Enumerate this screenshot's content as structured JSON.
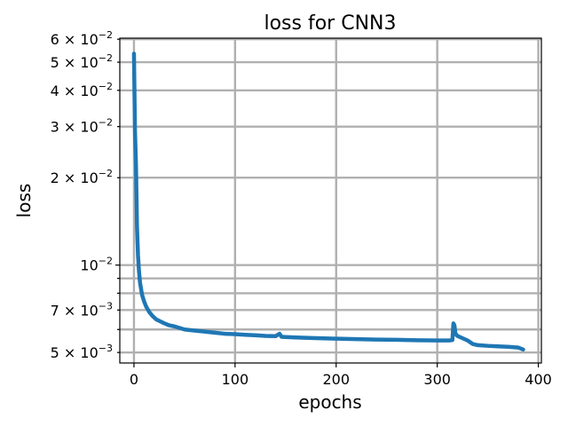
{
  "chart_data": {
    "type": "line",
    "title": "loss for CNN3",
    "xlabel": "epochs",
    "ylabel": "loss",
    "yscale": "log",
    "grid": true,
    "xlim": [
      -14,
      403
    ],
    "ylim": [
      0.0046,
      0.0605
    ],
    "xticks": [
      {
        "value": 0,
        "label": "0"
      },
      {
        "value": 100,
        "label": "100"
      },
      {
        "value": 200,
        "label": "200"
      },
      {
        "value": 300,
        "label": "300"
      },
      {
        "value": 400,
        "label": "400"
      }
    ],
    "yticks_major": [
      {
        "value": 0.01,
        "mantissa": "10",
        "exponent": "−2"
      }
    ],
    "yticks_minor": [
      {
        "value": 0.005,
        "mantissa": "5 × 10",
        "exponent": "−3"
      },
      {
        "value": 0.006,
        "mantissa": "",
        "exponent": ""
      },
      {
        "value": 0.007,
        "mantissa": "7 × 10",
        "exponent": "−3"
      },
      {
        "value": 0.008,
        "mantissa": "",
        "exponent": ""
      },
      {
        "value": 0.009,
        "mantissa": "",
        "exponent": ""
      },
      {
        "value": 0.02,
        "mantissa": "2 × 10",
        "exponent": "−2"
      },
      {
        "value": 0.03,
        "mantissa": "3 × 10",
        "exponent": "−2"
      },
      {
        "value": 0.04,
        "mantissa": "4 × 10",
        "exponent": "−2"
      },
      {
        "value": 0.05,
        "mantissa": "5 × 10",
        "exponent": "−2"
      },
      {
        "value": 0.06,
        "mantissa": "6 × 10",
        "exponent": "−2"
      }
    ],
    "series": [
      {
        "color": "#1f77b4",
        "x": [
          0,
          1,
          2,
          3,
          4,
          5,
          6,
          8,
          10,
          12,
          15,
          18,
          22,
          26,
          30,
          35,
          40,
          50,
          60,
          70,
          80,
          90,
          100,
          110,
          120,
          130,
          140,
          144,
          146,
          150,
          160,
          180,
          200,
          220,
          240,
          260,
          280,
          300,
          312,
          315,
          316,
          317,
          318,
          320,
          330,
          335,
          340,
          350,
          360,
          370,
          380,
          385
        ],
        "y": [
          0.0535,
          0.029,
          0.022,
          0.0135,
          0.0108,
          0.0095,
          0.0087,
          0.0079,
          0.0075,
          0.0072,
          0.0069,
          0.0067,
          0.0065,
          0.0064,
          0.0063,
          0.0062,
          0.00615,
          0.006,
          0.00595,
          0.0059,
          0.00585,
          0.0058,
          0.00578,
          0.00575,
          0.00573,
          0.0057,
          0.00569,
          0.0058,
          0.00566,
          0.00565,
          0.00563,
          0.0056,
          0.00558,
          0.00556,
          0.00554,
          0.00553,
          0.00551,
          0.0055,
          0.0055,
          0.00552,
          0.0063,
          0.0062,
          0.0058,
          0.0057,
          0.0055,
          0.00535,
          0.0053,
          0.00527,
          0.00525,
          0.00523,
          0.0052,
          0.00512
        ]
      }
    ]
  }
}
